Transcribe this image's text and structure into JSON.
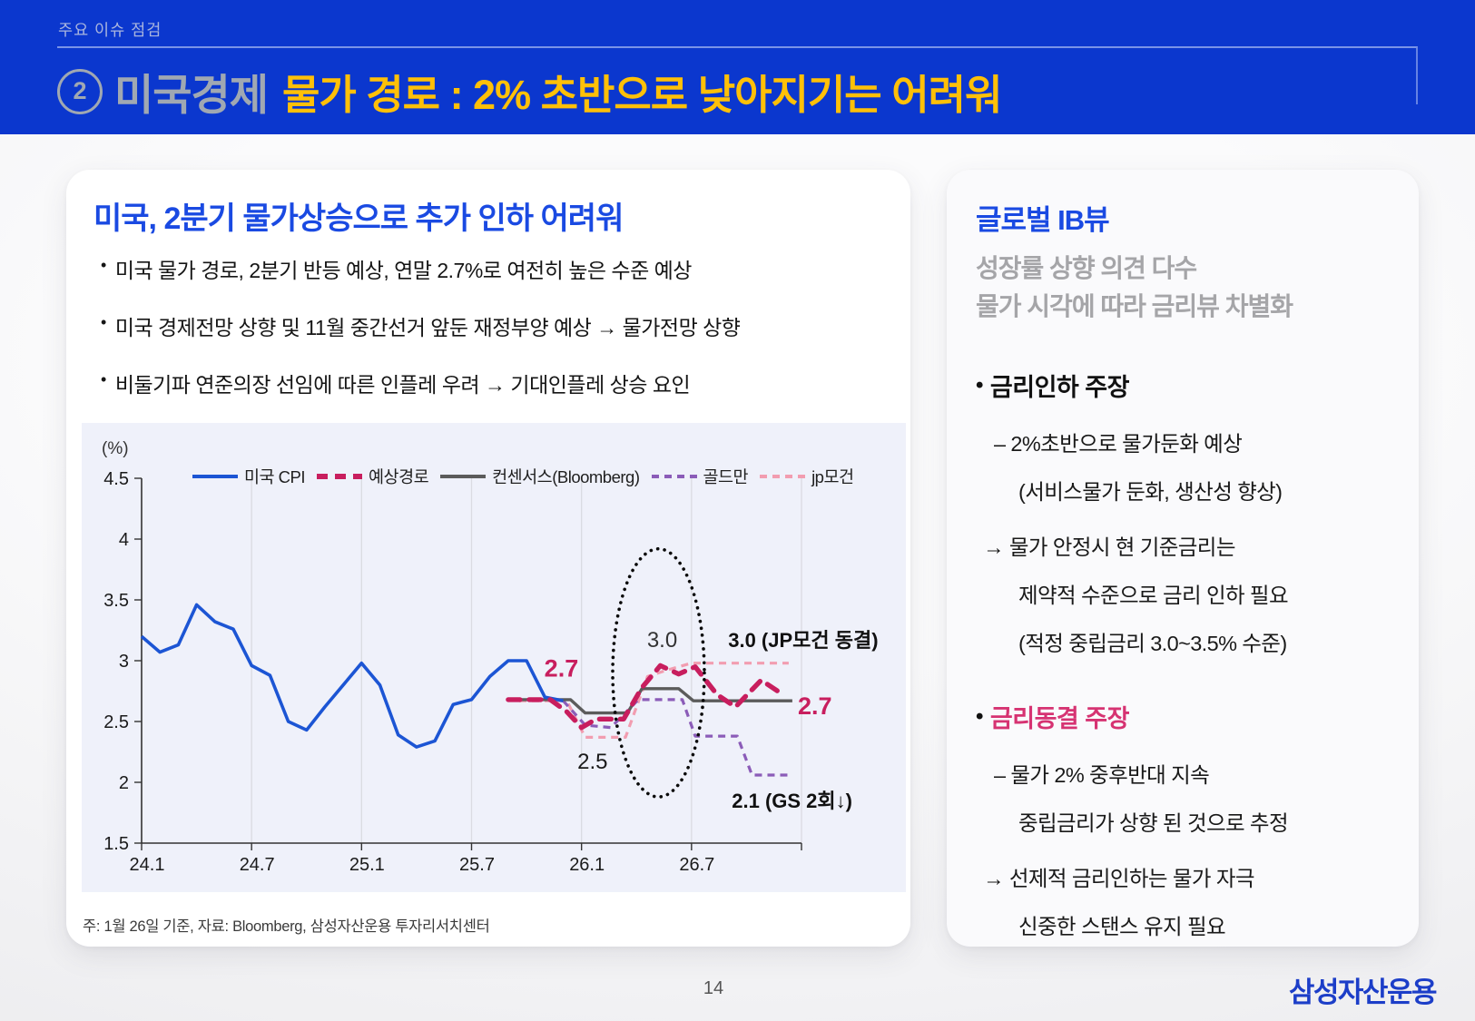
{
  "eyebrow": "주요 이슈 점검",
  "banner": {
    "number": "2",
    "category": "미국경제",
    "title": "물가 경로 : 2% 초반으로 낮아지기는 어려워",
    "bg_color": "#0B37CE",
    "category_color": "#A0A8B2",
    "title_color": "#FFC008"
  },
  "left_card": {
    "title": "미국, 2분기 물가상승으로 추가 인하 어려워",
    "bullets": [
      "미국 물가 경로, 2분기 반등 예상, 연말 2.7%로 여전히 높은 수준 예상",
      "미국 경제전망 상향 및 11월 중간선거 앞둔 재정부양 예상 → 물가전망 상향",
      "비둘기파 연준의장 선임에 따른 인플레 우려 → 기대인플레 상승 요인"
    ],
    "footnote": "주: 1월 26일 기준,  자료: Bloomberg, 삼성자산운용 투자리서치센터"
  },
  "chart_data": {
    "type": "line",
    "unit_label": "(%)",
    "ylim": [
      1.5,
      4.5
    ],
    "yticks": [
      {
        "v": 4.5,
        "label": "4.5"
      },
      {
        "v": 4.0,
        "label": "4"
      },
      {
        "v": 3.5,
        "label": "3.5"
      },
      {
        "v": 3.0,
        "label": "3"
      },
      {
        "v": 2.5,
        "label": "2.5"
      },
      {
        "v": 2.0,
        "label": "2"
      },
      {
        "v": 1.5,
        "label": "1.5"
      }
    ],
    "x_months_span": 36,
    "xticks": [
      {
        "m": 0,
        "label": "24.1"
      },
      {
        "m": 6,
        "label": "24.7"
      },
      {
        "m": 12,
        "label": "25.1"
      },
      {
        "m": 18,
        "label": "25.7"
      },
      {
        "m": 24,
        "label": "26.1"
      },
      {
        "m": 30,
        "label": "26.7"
      }
    ],
    "grid_months": [
      6,
      12,
      18,
      24,
      30,
      36
    ],
    "series": [
      {
        "key": "jp",
        "name": "jp모건",
        "color": "#F29DB0",
        "style": "dash",
        "width": 3.2,
        "points": [
          [
            20.6,
            2.67
          ],
          [
            23.2,
            2.67
          ],
          [
            24.2,
            2.37
          ],
          [
            26.4,
            2.37
          ],
          [
            27.6,
            2.87
          ],
          [
            28.6,
            2.92
          ],
          [
            30,
            2.98
          ],
          [
            35.3,
            2.98
          ]
        ]
      },
      {
        "key": "goldman",
        "name": "골드만",
        "color": "#8B5CB8",
        "style": "dash",
        "width": 3.2,
        "points": [
          [
            23,
            2.67
          ],
          [
            24.2,
            2.47
          ],
          [
            25.6,
            2.45
          ],
          [
            27.1,
            2.68
          ],
          [
            29.5,
            2.68
          ],
          [
            30.2,
            2.38
          ],
          [
            32.5,
            2.38
          ],
          [
            33.3,
            2.06
          ],
          [
            35.4,
            2.06
          ]
        ]
      },
      {
        "key": "consensus",
        "name": "컨센서스(Bloomberg)",
        "color": "#5B5B5B",
        "style": "solid",
        "width": 3.4,
        "points": [
          [
            20,
            2.68
          ],
          [
            23.4,
            2.68
          ],
          [
            24.2,
            2.57
          ],
          [
            26.5,
            2.57
          ],
          [
            27.3,
            2.77
          ],
          [
            29.3,
            2.77
          ],
          [
            30.1,
            2.67
          ],
          [
            35.5,
            2.67
          ]
        ]
      },
      {
        "key": "cpi",
        "name": "미국 CPI",
        "color": "#1C55D4",
        "style": "solid",
        "width": 3.6,
        "points": [
          [
            0,
            3.2
          ],
          [
            1,
            3.07
          ],
          [
            2,
            3.13
          ],
          [
            3,
            3.46
          ],
          [
            4,
            3.32
          ],
          [
            5,
            3.26
          ],
          [
            6,
            2.96
          ],
          [
            7,
            2.88
          ],
          [
            8,
            2.5
          ],
          [
            9,
            2.43
          ],
          [
            10,
            2.62
          ],
          [
            11,
            2.8
          ],
          [
            12,
            2.98
          ],
          [
            13,
            2.8
          ],
          [
            14,
            2.39
          ],
          [
            15,
            2.29
          ],
          [
            16,
            2.34
          ],
          [
            17,
            2.64
          ],
          [
            18,
            2.68
          ],
          [
            19,
            2.87
          ],
          [
            20,
            3.0
          ],
          [
            21,
            3.0
          ],
          [
            22,
            2.7
          ],
          [
            23,
            2.67
          ]
        ]
      },
      {
        "key": "expected",
        "name": "예상경로",
        "color": "#C81E5E",
        "style": "dash-long",
        "width": 5.4,
        "points": [
          [
            20,
            2.68
          ],
          [
            22.3,
            2.68
          ],
          [
            23.2,
            2.58
          ],
          [
            24,
            2.45
          ],
          [
            24.8,
            2.52
          ],
          [
            26.3,
            2.52
          ],
          [
            27.3,
            2.78
          ],
          [
            28.3,
            2.96
          ],
          [
            29.3,
            2.89
          ],
          [
            30.2,
            2.95
          ],
          [
            31.4,
            2.72
          ],
          [
            32.4,
            2.62
          ],
          [
            33.8,
            2.84
          ],
          [
            35,
            2.72
          ]
        ]
      }
    ],
    "legend_order": [
      "cpi",
      "expected",
      "consensus",
      "goldman",
      "jp"
    ],
    "annotations": [
      {
        "text": "2.7",
        "m": 22.9,
        "v": 2.93,
        "color": "#C81E5E",
        "size": 27,
        "weight": 700,
        "anchor": "middle"
      },
      {
        "text": "2.5",
        "m": 24.6,
        "v": 2.17,
        "color": "#1A1A1A",
        "size": 24,
        "weight": 400,
        "anchor": "middle"
      },
      {
        "text": "3.0",
        "m": 28.4,
        "v": 3.17,
        "color": "#333333",
        "size": 24,
        "weight": 400,
        "anchor": "middle"
      },
      {
        "text": "3.0 (JP모건 동결)",
        "m": 32.0,
        "v": 3.17,
        "color": "#111111",
        "size": 22,
        "weight": 600,
        "anchor": "start"
      },
      {
        "text": "2.7",
        "m": 35.8,
        "v": 2.62,
        "color": "#C81E5E",
        "size": 27,
        "weight": 700,
        "anchor": "start"
      },
      {
        "text": "2.1 (GS 2회↓)",
        "m": 32.2,
        "v": 1.85,
        "color": "#111111",
        "size": 22,
        "weight": 600,
        "anchor": "start"
      }
    ],
    "ellipse": {
      "m": 28.2,
      "v": 2.9,
      "rx_months": 2.5,
      "ry_units": 1.02
    }
  },
  "right_card": {
    "title": "글로벌 IB뷰",
    "subtitle_lines": [
      "성장률 상향 의견 다수",
      "물가 시각에 따라 금리뷰 차별화"
    ],
    "sections": [
      {
        "heading": "금리인하 주장",
        "heading_color": "#111111",
        "lines": [
          {
            "text": "– 2%초반으로 물가둔화 예상",
            "indent": 1
          },
          {
            "text": "(서비스물가 둔화, 생산성 향상)",
            "indent": 2
          },
          {
            "text": "→ 물가 안정시 현 기준금리는",
            "indent": 0
          },
          {
            "text": "제약적 수준으로 금리 인하 필요",
            "indent": 2
          },
          {
            "text": "(적정 중립금리 3.0~3.5% 수준)",
            "indent": 2
          }
        ]
      },
      {
        "heading": "금리동결 주장",
        "heading_color": "#D63372",
        "lines": [
          {
            "text": "–  물가 2% 중후반대 지속",
            "indent": 1
          },
          {
            "text": "중립금리가 상향 된 것으로 추정",
            "indent": 2
          },
          {
            "text": "→ 선제적 금리인하는 물가 자극",
            "indent": 0
          },
          {
            "text": "신중한 스탠스 유지 필요",
            "indent": 2
          }
        ]
      }
    ]
  },
  "footer": {
    "page_number": "14",
    "logo": "삼성자산운용"
  }
}
